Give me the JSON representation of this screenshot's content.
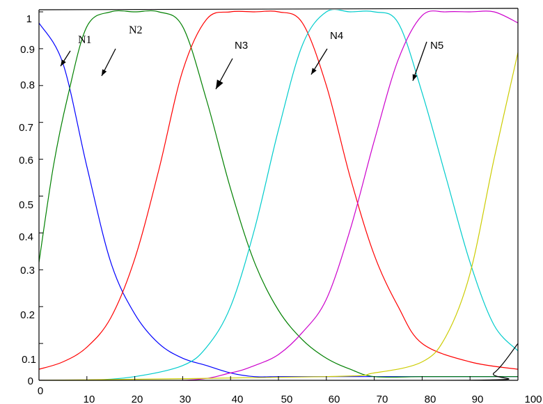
{
  "chart_data": {
    "type": "line",
    "title": "",
    "xlabel": "",
    "ylabel": "",
    "xlim": [
      0,
      100
    ],
    "ylim": [
      0,
      1
    ],
    "grid": false,
    "x_ticks": [
      "0",
      "10",
      "20",
      "30",
      "40",
      "50",
      "60",
      "70",
      "80",
      "90",
      "100"
    ],
    "y_ticks": [
      "0",
      "0.1",
      "0.2",
      "0.3",
      "0.4",
      "0.5",
      "0.6",
      "0.7",
      "0.8",
      "0.9",
      "1"
    ],
    "series": [
      {
        "color": "#0000ff",
        "x": [
          0,
          5,
          10,
          15,
          20,
          25,
          30,
          35,
          40,
          45,
          50,
          55,
          60,
          65,
          70,
          80,
          90,
          100
        ],
        "values": [
          0.97,
          0.86,
          0.58,
          0.32,
          0.18,
          0.1,
          0.06,
          0.04,
          0.02,
          0.01,
          0.01,
          0.01,
          0.01,
          0.01,
          0.01,
          0.01,
          0.01,
          0.01
        ]
      },
      {
        "color": "#008000",
        "x": [
          0,
          3,
          6,
          10,
          15,
          20,
          25,
          30,
          35,
          40,
          45,
          50,
          55,
          60,
          65,
          70,
          80,
          90,
          100
        ],
        "values": [
          0.32,
          0.58,
          0.77,
          0.96,
          1,
          1,
          1,
          0.96,
          0.76,
          0.52,
          0.32,
          0.19,
          0.11,
          0.06,
          0.03,
          0.01,
          0.01,
          0.01,
          0.01
        ]
      },
      {
        "color": "#ff0000",
        "x": [
          0,
          5,
          10,
          15,
          20,
          25,
          30,
          35,
          40,
          45,
          50,
          55,
          60,
          65,
          70,
          75,
          80,
          90,
          100
        ],
        "values": [
          0.03,
          0.05,
          0.09,
          0.17,
          0.33,
          0.57,
          0.84,
          0.98,
          1,
          1,
          1,
          0.97,
          0.8,
          0.55,
          0.34,
          0.2,
          0.1,
          0.05,
          0.03
        ]
      },
      {
        "color": "#00cccc",
        "x": [
          0,
          10,
          20,
          30,
          35,
          40,
          45,
          50,
          55,
          60,
          65,
          70,
          75,
          80,
          85,
          90,
          95,
          100
        ],
        "values": [
          0,
          0,
          0.01,
          0.04,
          0.09,
          0.2,
          0.41,
          0.68,
          0.91,
          1,
          1,
          1,
          0.97,
          0.78,
          0.55,
          0.32,
          0.15,
          0.08
        ]
      },
      {
        "color": "#cc00cc",
        "x": [
          0,
          30,
          40,
          45,
          50,
          55,
          60,
          65,
          70,
          75,
          80,
          85,
          90,
          95,
          100
        ],
        "values": [
          0,
          0,
          0.02,
          0.04,
          0.07,
          0.13,
          0.22,
          0.41,
          0.65,
          0.87,
          0.99,
          1,
          1,
          1,
          0.97
        ]
      },
      {
        "color": "#cccc00",
        "x": [
          0,
          60,
          70,
          80,
          85,
          90,
          95,
          100
        ],
        "values": [
          0,
          0.01,
          0.02,
          0.05,
          0.12,
          0.29,
          0.6,
          0.89
        ]
      },
      {
        "color": "#000000",
        "x": [
          0,
          90,
          95,
          100
        ],
        "values": [
          0,
          0,
          0.02,
          0.1
        ]
      }
    ],
    "annotations": [
      {
        "label": "N1",
        "color": "#0000ff"
      },
      {
        "label": "N2",
        "color": "#008000"
      },
      {
        "label": "N3",
        "color": "#ff0000"
      },
      {
        "label": "N4",
        "color": "#00cccc"
      },
      {
        "label": "N5",
        "color": "#cc00cc"
      }
    ]
  }
}
